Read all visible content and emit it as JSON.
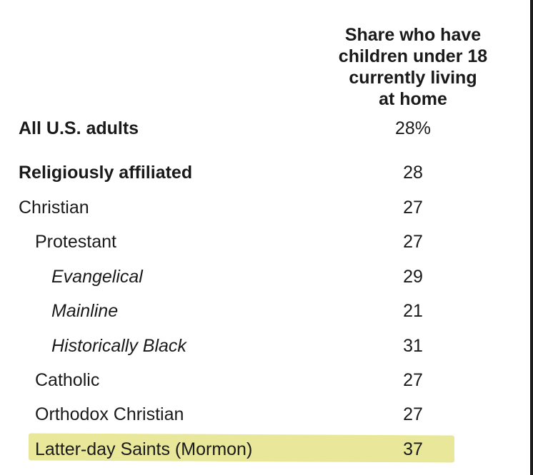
{
  "chart_data": {
    "type": "table",
    "column_header_lines": [
      "Share who have",
      "children under 18",
      "currently living",
      "at home"
    ],
    "highlight_color": "#e8e79a",
    "rows": [
      {
        "label": "All U.S. adults",
        "value": "28%",
        "style": "bold",
        "indent": 0
      },
      {
        "label": "Religiously affiliated",
        "value": "28",
        "style": "bold",
        "indent": 0
      },
      {
        "label": "Christian",
        "value": "27",
        "style": "normal",
        "indent": 0
      },
      {
        "label": "Protestant",
        "value": "27",
        "style": "normal",
        "indent": 1
      },
      {
        "label": "Evangelical",
        "value": "29",
        "style": "italic",
        "indent": 2
      },
      {
        "label": "Mainline",
        "value": "21",
        "style": "italic",
        "indent": 2
      },
      {
        "label": "Historically Black",
        "value": "31",
        "style": "italic",
        "indent": 2
      },
      {
        "label": "Catholic",
        "value": "27",
        "style": "normal",
        "indent": 1
      },
      {
        "label": "Orthodox Christian",
        "value": "27",
        "style": "normal",
        "indent": 1
      },
      {
        "label": "Latter-day Saints (Mormon)",
        "value": "37",
        "style": "normal",
        "indent": 1,
        "highlighted": true
      }
    ]
  }
}
